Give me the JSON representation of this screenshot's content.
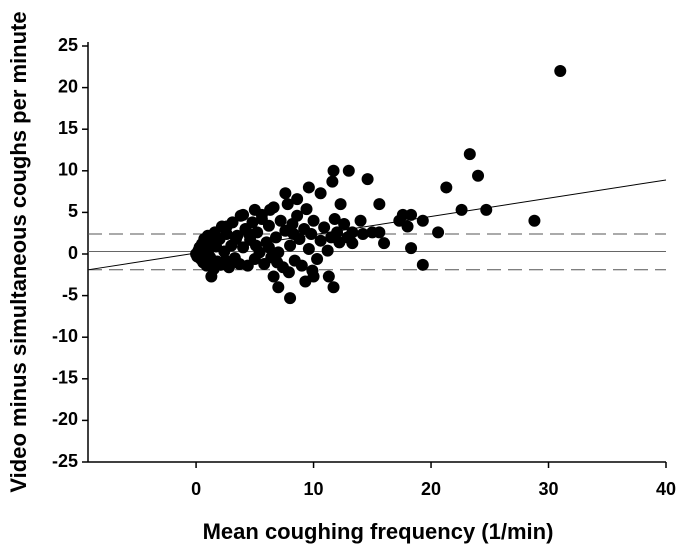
{
  "chart_data": {
    "type": "scatter",
    "xlabel": "Mean coughing frequency (1/min)",
    "ylabel": "Video minus simultaneous coughs per minute",
    "xlim": [
      -9.2,
      40
    ],
    "xticks": [
      0,
      10,
      20,
      30,
      40
    ],
    "ylim": [
      -25,
      25
    ],
    "yticks": [
      -25,
      -20,
      -15,
      -10,
      -5,
      0,
      5,
      10,
      15,
      20,
      25
    ],
    "color": "#000000",
    "x": [
      0,
      0.1,
      0.2,
      0.3,
      0.4,
      0.5,
      0.6,
      0.7,
      0.8,
      0.9,
      1,
      1.1,
      1.2,
      1.3,
      1.5,
      1.6,
      1.7,
      1.8,
      2,
      2.1,
      2.2,
      2.4,
      2.6,
      2.8,
      3,
      3.1,
      3.3,
      3.5,
      3.7,
      3.8,
      4,
      4.2,
      4.4,
      4.6,
      4.8,
      5,
      5.2,
      5.4,
      5.6,
      5.8,
      6,
      6.2,
      6.4,
      6.6,
      6.8,
      7,
      7.2,
      7.4,
      7.6,
      7.8,
      8,
      8.2,
      8.4,
      8.6,
      8.8,
      9,
      9.2,
      9.4,
      9.6,
      9.8,
      10,
      10.3,
      10.6,
      10.9,
      11.2,
      11.5,
      11.8,
      12.2,
      12.6,
      13.3,
      14.2,
      3.4,
      2.5,
      5.1,
      6.9,
      7.9,
      8.3,
      9.9,
      4.5,
      6.2,
      31,
      28.8,
      24.7,
      24,
      23.3,
      22.6,
      21.3,
      20.6,
      19.3,
      19.3,
      18.3,
      18.3,
      18,
      17.6,
      17.3,
      16,
      15.6,
      15.6,
      15,
      14.6,
      14,
      13.3,
      13,
      12.9,
      12.3,
      12,
      11.7,
      11.7,
      11.3,
      11.6,
      10.6,
      10,
      9.6,
      9.3,
      8.6,
      8,
      7.6,
      7,
      6.6,
      6.3,
      5.6,
      5,
      4,
      2.6,
      1.3
    ],
    "values": [
      0,
      -0.3,
      0.4,
      0.8,
      -0.6,
      1.2,
      -1,
      1.8,
      0.2,
      -1.4,
      2.2,
      0.6,
      -0.4,
      1.4,
      -1.8,
      2.6,
      0.9,
      -0.9,
      1.8,
      -1.3,
      3.3,
      0.3,
      2.4,
      -1.6,
      1,
      3.8,
      -0.5,
      2.2,
      -1.2,
      4.6,
      0.8,
      3,
      -1.4,
      1.7,
      3.8,
      -0.6,
      2.6,
      0.2,
      4.2,
      -1.2,
      1.4,
      3.4,
      -0.4,
      5.6,
      2,
      0.2,
      4,
      -1.6,
      2.8,
      6,
      1,
      3.6,
      -0.8,
      4.6,
      1.8,
      -1.4,
      3,
      5.4,
      0.6,
      2.4,
      4,
      -0.6,
      1.6,
      3.2,
      0.4,
      2,
      4.2,
      1.4,
      3.6,
      2.6,
      2.4,
      1.8,
      -0.8,
      1,
      -1,
      -2.2,
      2.4,
      -2,
      2.4,
      0.8,
      22,
      4,
      5.3,
      9.4,
      12,
      5.3,
      8,
      2.6,
      -1.3,
      4,
      4.7,
      0.7,
      3.3,
      4.7,
      4,
      1.3,
      2.6,
      6,
      2.6,
      9,
      4,
      1.3,
      10,
      2,
      6,
      2.6,
      10,
      -4,
      -2.7,
      8.7,
      7.3,
      -2.7,
      8,
      -3.3,
      6.6,
      -5.3,
      7.3,
      -4,
      -2.7,
      5.3,
      4.7,
      5.3,
      4.7,
      3.3,
      -2.7
    ],
    "hlines": [
      {
        "value": 0.3,
        "style": "solid"
      },
      {
        "value": 2.4,
        "style": "dashed"
      },
      {
        "value": -1.9,
        "style": "dashed"
      }
    ],
    "regression": {
      "x": [
        -9.2,
        40
      ],
      "y": [
        -1.9,
        8.9
      ]
    }
  }
}
